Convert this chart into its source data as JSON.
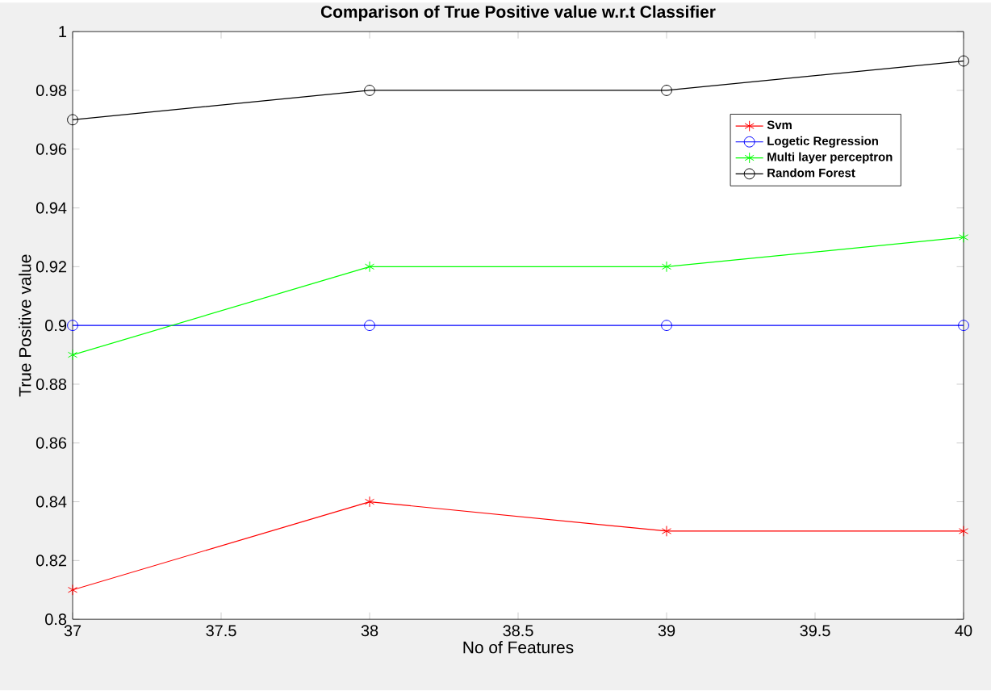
{
  "chart_data": {
    "type": "line",
    "title": "Comparison of True Positive value w.r.t Classifier",
    "xlabel": "No of Features",
    "ylabel": "True Positive value",
    "x": [
      37,
      38,
      39,
      40
    ],
    "series": [
      {
        "name": "Svm",
        "color": "#ff0000",
        "marker": "cross",
        "values": [
          0.81,
          0.84,
          0.83,
          0.83
        ]
      },
      {
        "name": "Logetic Regression",
        "color": "#0000ff",
        "marker": "circle",
        "values": [
          0.9,
          0.9,
          0.9,
          0.9
        ]
      },
      {
        "name": "Multi layer perceptron",
        "color": "#00ff00",
        "marker": "cross",
        "values": [
          0.89,
          0.92,
          0.92,
          0.93
        ]
      },
      {
        "name": "Random Forest",
        "color": "#000000",
        "marker": "circle",
        "values": [
          0.97,
          0.98,
          0.98,
          0.99
        ]
      }
    ],
    "xlim": [
      37,
      40
    ],
    "xticks": [
      37,
      37.5,
      38,
      38.5,
      39,
      39.5,
      40
    ],
    "ylim": [
      0.8,
      1
    ],
    "yticks": [
      0.8,
      0.82,
      0.84,
      0.86,
      0.88,
      0.9,
      0.92,
      0.94,
      0.96,
      0.98,
      1
    ],
    "grid": false,
    "legend": "top right",
    "line_style": "solid"
  }
}
